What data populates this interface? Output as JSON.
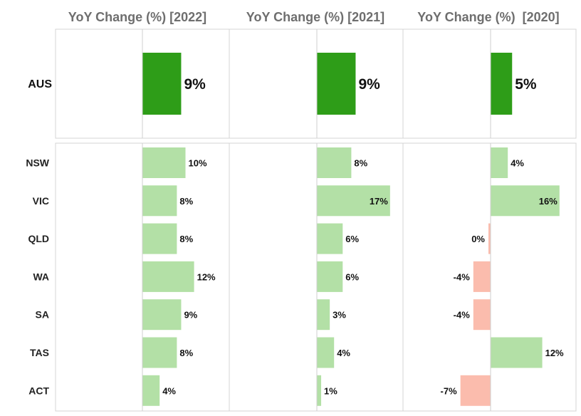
{
  "chart_data": {
    "type": "bar",
    "orientation": "horizontal",
    "columns": [
      "YoY Change (%) [2022]",
      "YoY Change (%) [2021]",
      "YoY Change (%)  [2020]"
    ],
    "total": {
      "category": "AUS",
      "values": [
        9,
        9,
        5
      ],
      "labels": [
        "9%",
        "9%",
        "5%"
      ]
    },
    "categories": [
      "NSW",
      "VIC",
      "QLD",
      "WA",
      "SA",
      "TAS",
      "ACT"
    ],
    "series": [
      {
        "values": [
          10,
          8,
          8,
          12,
          9,
          8,
          4
        ],
        "labels": [
          "10%",
          "8%",
          "8%",
          "12%",
          "9%",
          "8%",
          "4%"
        ]
      },
      {
        "values": [
          8,
          17,
          6,
          6,
          3,
          4,
          1
        ],
        "labels": [
          "8%",
          "17%",
          "6%",
          "6%",
          "3%",
          "4%",
          "1%"
        ]
      },
      {
        "values": [
          4,
          16,
          0,
          -4,
          -4,
          12,
          -7
        ],
        "labels": [
          "4%",
          "16%",
          "0%",
          "-4%",
          "-4%",
          "12%",
          "-7%"
        ]
      }
    ],
    "colors": {
      "total_bar": "#2e9d18",
      "positive_bar": "#b3e0a6",
      "negative_bar": "#fbbcad",
      "panel_border": "#d4d4d4",
      "zero_line": "#cfcfcf"
    }
  }
}
